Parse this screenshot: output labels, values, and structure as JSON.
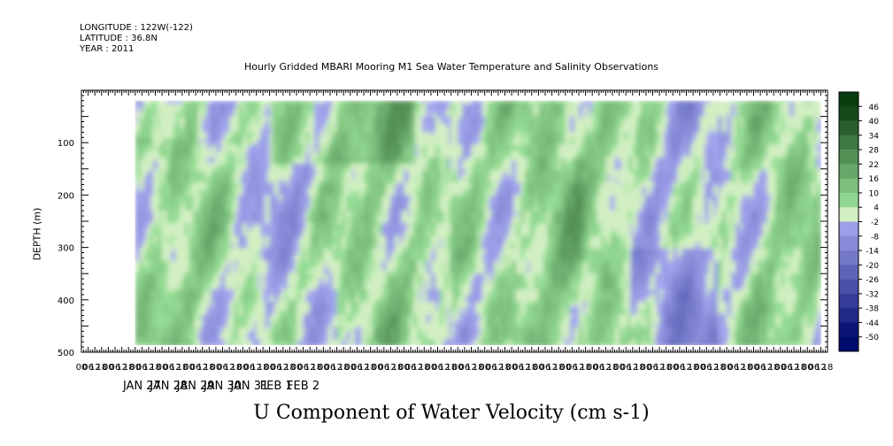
{
  "meta": {
    "longitude": "LONGITUDE : 122W(-122)",
    "latitude": "LATITUDE : 36.8N",
    "year": "YEAR : 2011"
  },
  "title": "Hourly Gridded MBARI Mooring M1 Sea Water Temperature and Salinity Observations",
  "variable_title": "U Component of Water Velocity (cm s-1)",
  "ylabel": "DEPTH (m)",
  "chart_data": {
    "type": "heatmap",
    "title": "Hourly Gridded MBARI Mooring M1 Sea Water Temperature and Salinity Observations",
    "variable": "U Component of Water Velocity (cm s-1)",
    "ylabel": "DEPTH (m)",
    "xlabel": "",
    "y_reversed": true,
    "ylim": [
      500,
      0
    ],
    "yticks": [
      100,
      200,
      300,
      400,
      500
    ],
    "data_depth_range": [
      20,
      485
    ],
    "xlim_hours": [
      -48,
      618
    ],
    "data_hours_range": [
      0,
      610
    ],
    "hour_ticks": [
      "00",
      "06",
      "12",
      "18"
    ],
    "day_labels": [
      "JAN 27",
      "JAN 28",
      "JAN 29",
      "JAN 30",
      "JAN 31",
      "FEB  1",
      "FEB  2"
    ],
    "colorbar_levels": [
      -50,
      -44,
      -38,
      -32,
      -26,
      -20,
      -14,
      -8,
      -2,
      4,
      10,
      16,
      22,
      28,
      34,
      40,
      46
    ],
    "colorbar_labels": [
      "46",
      "40",
      "34",
      "28",
      "22",
      "16",
      "10",
      "4",
      "-2",
      "-8",
      "-14",
      "-20",
      "-26",
      "-32",
      "-38",
      "-44",
      "-50"
    ],
    "colors": {
      "negative_strong": "#000b6e",
      "negative_light": "#a7a9f0",
      "near_zero": "#d2efc2",
      "positive_light": "#9be29a",
      "positive_strong": "#0a3d10"
    },
    "value_summary": {
      "min_approx": -30,
      "max_approx": 25,
      "dominant_range": [
        -14,
        16
      ]
    }
  }
}
